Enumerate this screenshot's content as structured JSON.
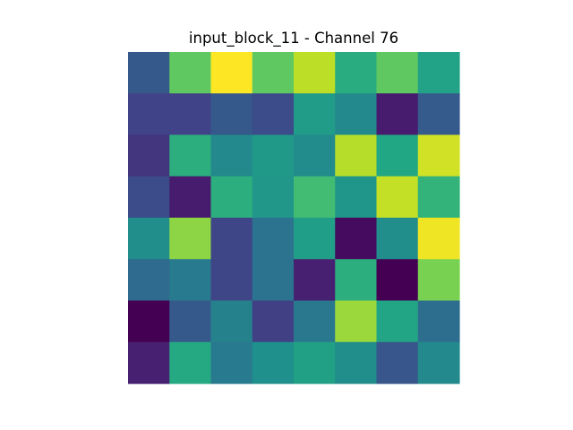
{
  "chart_data": {
    "type": "heatmap",
    "title": "input_block_11 - Channel 76",
    "xlabel": "",
    "ylabel": "",
    "rows": 8,
    "cols": 8,
    "axes_visible": false,
    "colorbar": false,
    "colormap": "viridis",
    "value_range": [
      0,
      1
    ],
    "values": [
      [
        0.28,
        0.75,
        1.0,
        0.75,
        0.9,
        0.62,
        0.75,
        0.58
      ],
      [
        0.2,
        0.2,
        0.28,
        0.23,
        0.55,
        0.47,
        0.08,
        0.29
      ],
      [
        0.16,
        0.63,
        0.47,
        0.54,
        0.48,
        0.89,
        0.6,
        0.93
      ],
      [
        0.23,
        0.08,
        0.63,
        0.53,
        0.69,
        0.52,
        0.91,
        0.65
      ],
      [
        0.49,
        0.83,
        0.21,
        0.38,
        0.56,
        0.03,
        0.49,
        0.98
      ],
      [
        0.35,
        0.41,
        0.21,
        0.38,
        0.09,
        0.63,
        0.0,
        0.8
      ],
      [
        0.0,
        0.28,
        0.44,
        0.19,
        0.4,
        0.85,
        0.59,
        0.36
      ],
      [
        0.09,
        0.61,
        0.41,
        0.5,
        0.57,
        0.49,
        0.27,
        0.47
      ]
    ]
  }
}
